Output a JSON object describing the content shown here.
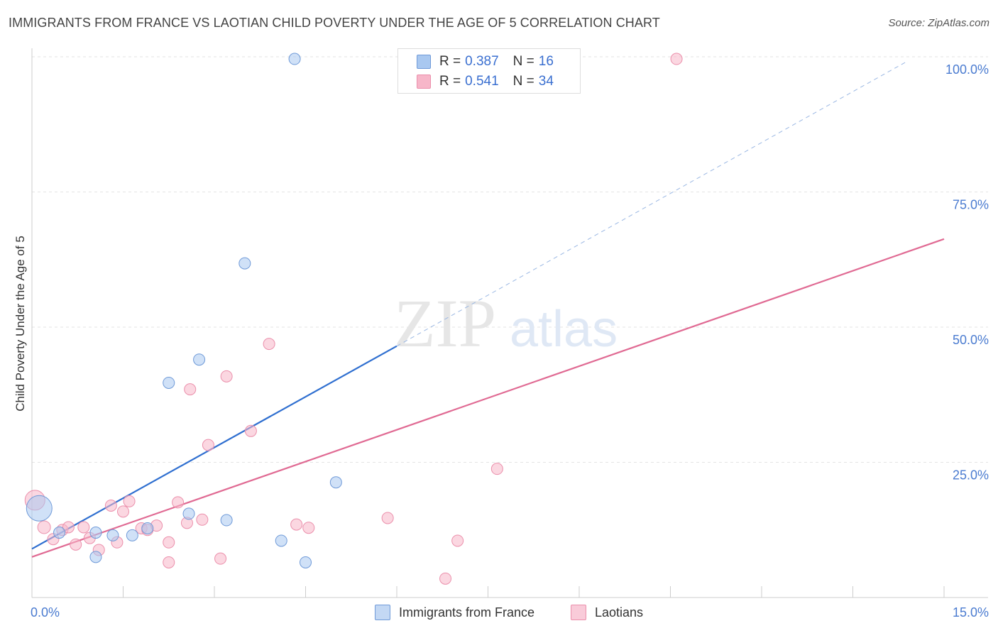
{
  "title": "IMMIGRANTS FROM FRANCE VS LAOTIAN CHILD POVERTY UNDER THE AGE OF 5 CORRELATION CHART",
  "source": "Source: ZipAtlas.com",
  "watermark": {
    "zip": "ZIP",
    "atlas": "atlas"
  },
  "legend": {
    "rows": [
      {
        "r_label": "R =",
        "r_value": "0.387",
        "n_label": "N =",
        "n_value": "16",
        "color": "#a9c8f0"
      },
      {
        "r_label": "R =",
        "r_value": "0.541",
        "n_label": "N =",
        "n_value": "34",
        "color": "#f7b6c9"
      }
    ]
  },
  "bottom_legend": {
    "france": "Immigrants from France",
    "laotians": "Laotians"
  },
  "chart_data": {
    "type": "scatter",
    "title": "IMMIGRANTS FROM FRANCE VS LAOTIAN CHILD POVERTY UNDER THE AGE OF 5 CORRELATION CHART",
    "xlabel": "",
    "ylabel": "Child Poverty Under the Age of 5",
    "xlim": [
      0,
      15
    ],
    "ylim": [
      0,
      100
    ],
    "x_tick_labels": [
      "0.0%",
      "15.0%"
    ],
    "y_tick_labels": [
      "25.0%",
      "50.0%",
      "75.0%",
      "100.0%"
    ],
    "y_tick_values": [
      25,
      50,
      75,
      100
    ],
    "grid": true,
    "legend_position": "top-center",
    "series": [
      {
        "name": "Immigrants from France",
        "color": "#a9c8f0",
        "stroke": "#6f9ad8",
        "trend_color": "#2f6fd0",
        "trend": {
          "x0": 0,
          "y0": 9.0,
          "x1": 6.0,
          "y1": 46.5,
          "dashed_to_x": 14.4,
          "dashed_to_y": 99.2
        },
        "points": [
          [
            0.12,
            16.5,
            18
          ],
          [
            0.45,
            12.0,
            8
          ],
          [
            1.05,
            12.0,
            8
          ],
          [
            1.05,
            7.5,
            8
          ],
          [
            1.33,
            11.5,
            8
          ],
          [
            1.65,
            11.5,
            8
          ],
          [
            1.9,
            12.8,
            8
          ],
          [
            2.25,
            39.7,
            8
          ],
          [
            2.58,
            15.5,
            8
          ],
          [
            2.75,
            44.0,
            8
          ],
          [
            3.2,
            14.3,
            8
          ],
          [
            3.5,
            61.8,
            8
          ],
          [
            4.1,
            10.5,
            8
          ],
          [
            4.5,
            6.5,
            8
          ],
          [
            5.0,
            21.3,
            8
          ],
          [
            4.32,
            99.6,
            8
          ]
        ]
      },
      {
        "name": "Laotians",
        "color": "#f7b6c9",
        "stroke": "#eb8fab",
        "trend_color": "#e06a93",
        "trend": {
          "x0": 0,
          "y0": 7.5,
          "x1": 15.0,
          "y1": 66.3
        },
        "points": [
          [
            0.05,
            18.0,
            14
          ],
          [
            0.2,
            13.0,
            9
          ],
          [
            0.35,
            10.8,
            8
          ],
          [
            0.5,
            12.5,
            8
          ],
          [
            0.6,
            13.0,
            8
          ],
          [
            0.72,
            9.8,
            8
          ],
          [
            0.85,
            13.0,
            8
          ],
          [
            0.95,
            11.0,
            8
          ],
          [
            1.1,
            8.8,
            8
          ],
          [
            1.3,
            17.0,
            8
          ],
          [
            1.4,
            10.2,
            8
          ],
          [
            1.5,
            15.9,
            8
          ],
          [
            1.6,
            17.8,
            8
          ],
          [
            1.8,
            12.8,
            8
          ],
          [
            1.9,
            12.5,
            8
          ],
          [
            2.05,
            13.3,
            8
          ],
          [
            2.25,
            6.5,
            8
          ],
          [
            2.25,
            10.2,
            8
          ],
          [
            2.4,
            17.6,
            8
          ],
          [
            2.55,
            13.8,
            8
          ],
          [
            2.6,
            38.5,
            8
          ],
          [
            2.8,
            14.4,
            8
          ],
          [
            2.9,
            28.2,
            8
          ],
          [
            3.1,
            7.2,
            8
          ],
          [
            3.2,
            40.9,
            8
          ],
          [
            3.6,
            30.8,
            8
          ],
          [
            3.9,
            46.9,
            8
          ],
          [
            4.35,
            13.5,
            8
          ],
          [
            4.55,
            12.9,
            8
          ],
          [
            5.85,
            14.7,
            8
          ],
          [
            6.8,
            3.5,
            8
          ],
          [
            7.0,
            10.5,
            8
          ],
          [
            7.65,
            23.8,
            8
          ],
          [
            10.6,
            99.6,
            8
          ]
        ]
      }
    ]
  }
}
